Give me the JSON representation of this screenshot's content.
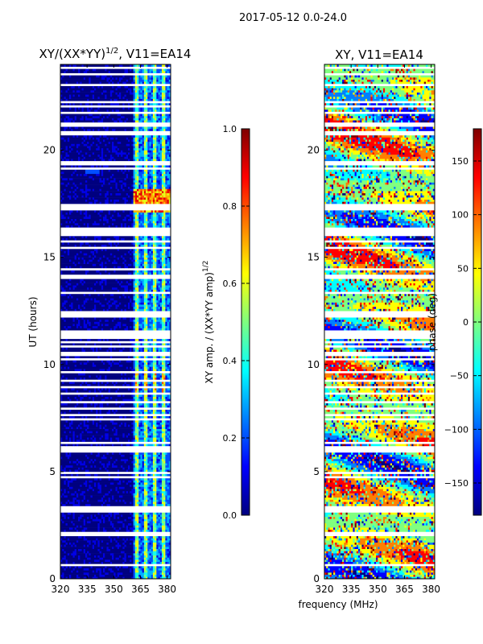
{
  "suptitle": "2017-05-12 0.0-24.0",
  "colors": {
    "jet": [
      "#00007f",
      "#0000ff",
      "#007fff",
      "#00ffff",
      "#7fff7f",
      "#ffff00",
      "#ff7f00",
      "#ff0000",
      "#7f0000"
    ],
    "gap": "#ffffff"
  },
  "chart_data": [
    {
      "type": "heatmap",
      "title_main": "XY/(XX*YY)",
      "title_exp": "1/2",
      "title_tail": ", V11=EA14",
      "xlabel": "",
      "ylabel": "UT (hours)",
      "xlim": [
        320,
        382
      ],
      "ylim": [
        0,
        24
      ],
      "xticks": [
        320,
        335,
        350,
        365,
        380
      ],
      "yticks": [
        0,
        5,
        10,
        15,
        20
      ],
      "colorbar": {
        "label_main": "XY amp. / (XX*YY amp)",
        "label_exp": "1/2",
        "range": [
          0.0,
          1.0
        ],
        "ticks": [
          "0.0",
          "0.2",
          "0.4",
          "0.6",
          "0.8",
          "1.0"
        ]
      }
    },
    {
      "type": "heatmap",
      "title_main": "XY, V11=EA14",
      "xlabel": "frequency (MHz)",
      "ylabel": "",
      "xlim": [
        320,
        382
      ],
      "ylim": [
        0,
        24
      ],
      "xticks": [
        320,
        335,
        350,
        365,
        380
      ],
      "yticks": [
        0,
        5,
        10,
        15,
        20
      ],
      "colorbar": {
        "label_main": "phase (deg)",
        "range": [
          -180,
          180
        ],
        "ticks": [
          "−150",
          "−100",
          "−50",
          "0",
          "50",
          "100",
          "150"
        ]
      }
    }
  ]
}
